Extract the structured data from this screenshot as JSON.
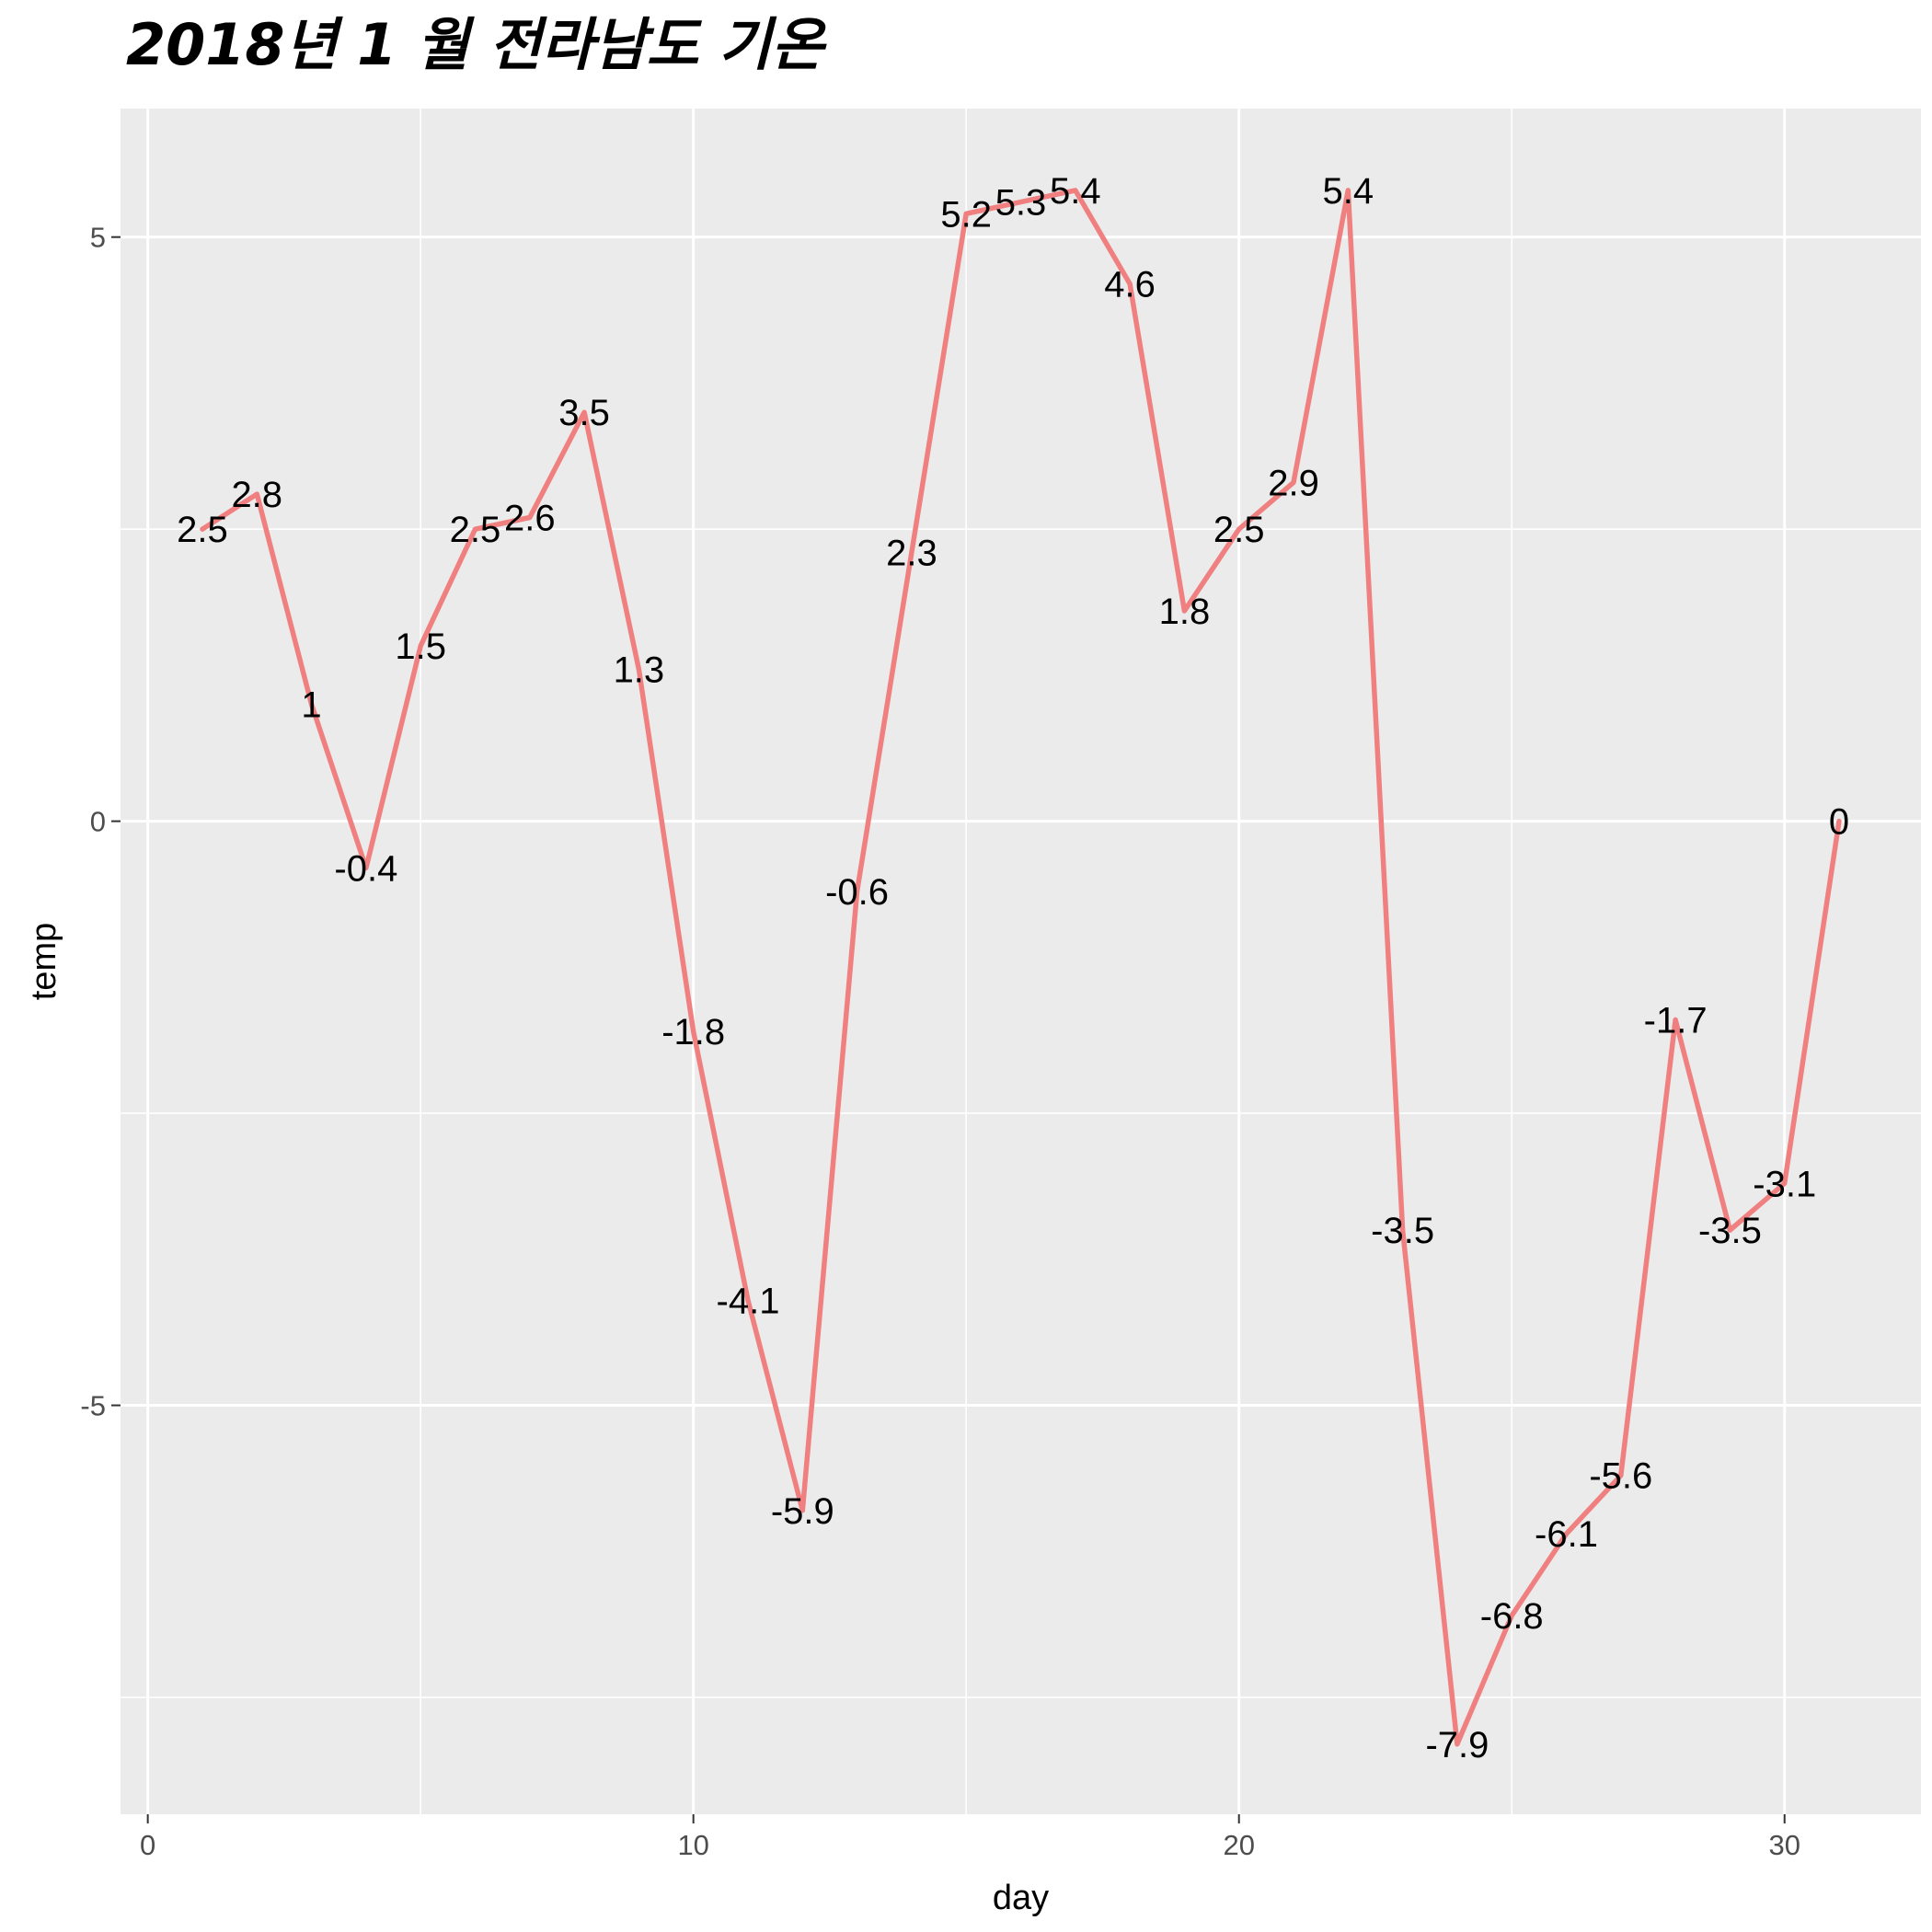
{
  "title": "2018년 1 월 전라남도 기온",
  "chart_data": {
    "type": "line",
    "title": "2018년 1 월 전라남도 기온",
    "xlabel": "day",
    "ylabel": "temp",
    "xlim": [
      -0.5,
      32.5
    ],
    "ylim": [
      -8.5,
      6.1
    ],
    "x_ticks": [
      0,
      10,
      20,
      30
    ],
    "y_ticks": [
      -5,
      0,
      5
    ],
    "x_tick_labels": [
      "0",
      "10",
      "20",
      "30"
    ],
    "y_tick_labels": [
      "-5",
      "0",
      "5"
    ],
    "grid": true,
    "legend": "none",
    "series": [
      {
        "color": "#F08080",
        "x": [
          1,
          2,
          3,
          4,
          5,
          6,
          7,
          8,
          9,
          10,
          11,
          12,
          13,
          14,
          15,
          16,
          17,
          18,
          19,
          20,
          21,
          22,
          23,
          24,
          25,
          26,
          27,
          28,
          29,
          30,
          31
        ],
        "y": [
          2.5,
          2.8,
          1,
          -0.4,
          1.5,
          2.5,
          2.6,
          3.5,
          1.3,
          -1.8,
          -4.1,
          -5.9,
          -0.6,
          2.3,
          5.2,
          5.3,
          5.4,
          4.6,
          1.8,
          2.5,
          2.9,
          5.4,
          -3.5,
          -7.9,
          -6.8,
          -6.1,
          -5.6,
          -1.7,
          -3.5,
          -3.1,
          0
        ],
        "labels": [
          "2.5",
          "2.8",
          "1",
          "-0.4",
          "1.5",
          "2.5",
          "2.6",
          "3.5",
          "1.3",
          "-1.8",
          "-4.1",
          "-5.9",
          "-0.6",
          "2.3",
          "5.2",
          "5.3",
          "5.4",
          "4.6",
          "1.8",
          "2.5",
          "2.9",
          "5.4",
          "-3.5",
          "-7.9",
          "-6.8",
          "-6.1",
          "-5.6",
          "-1.7",
          "-3.5",
          "-3.1",
          "0"
        ]
      }
    ],
    "colors": {
      "panel_background": "#EBEBEB",
      "grid_major": "#FFFFFF",
      "tick_text": "#4D4D4D",
      "line": "#F08080"
    }
  }
}
